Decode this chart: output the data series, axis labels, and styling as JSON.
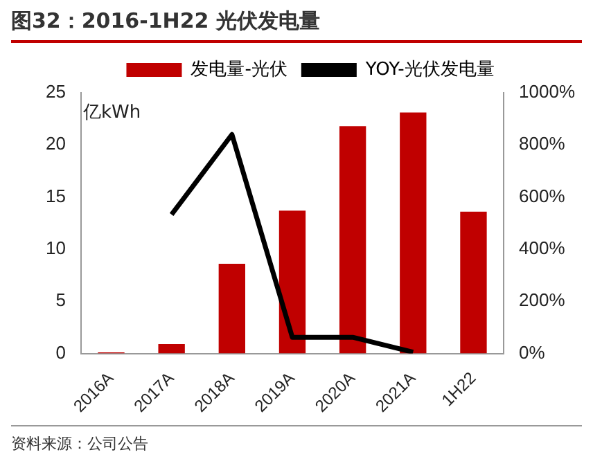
{
  "chart_data": {
    "type": "bar",
    "title": "图32：2016-1H22 光伏发电量",
    "ylabel": "亿kWh",
    "annotations": [
      "资料来源：公司公告"
    ],
    "categories": [
      "2016A",
      "2017A",
      "2018A",
      "2019A",
      "2020A",
      "2021A",
      "1H22"
    ],
    "series": [
      {
        "name": "发电量-光伏",
        "color": "#c00000",
        "values": [
          0.1,
          0.9,
          8.6,
          13.7,
          21.8,
          23.1,
          13.6
        ]
      },
      {
        "name": "YOY-光伏发电量",
        "type": "line",
        "axis": "y2",
        "color": "#000000",
        "values": [
          null,
          533,
          840,
          62,
          62,
          5,
          null
        ]
      }
    ],
    "ylim": [
      0,
      25
    ],
    "yticks": [
      0,
      5,
      10,
      15,
      20,
      25
    ],
    "y2lim": [
      0,
      1000
    ],
    "y2ticks": [
      {
        "value": 0,
        "label": "0%"
      },
      {
        "value": 200,
        "label": "200%"
      },
      {
        "value": 400,
        "label": "400%"
      },
      {
        "value": 600,
        "label": "600%"
      },
      {
        "value": 800,
        "label": "800%"
      },
      {
        "value": 1000,
        "label": "1000%"
      }
    ],
    "legend": "top",
    "marker": "none"
  }
}
